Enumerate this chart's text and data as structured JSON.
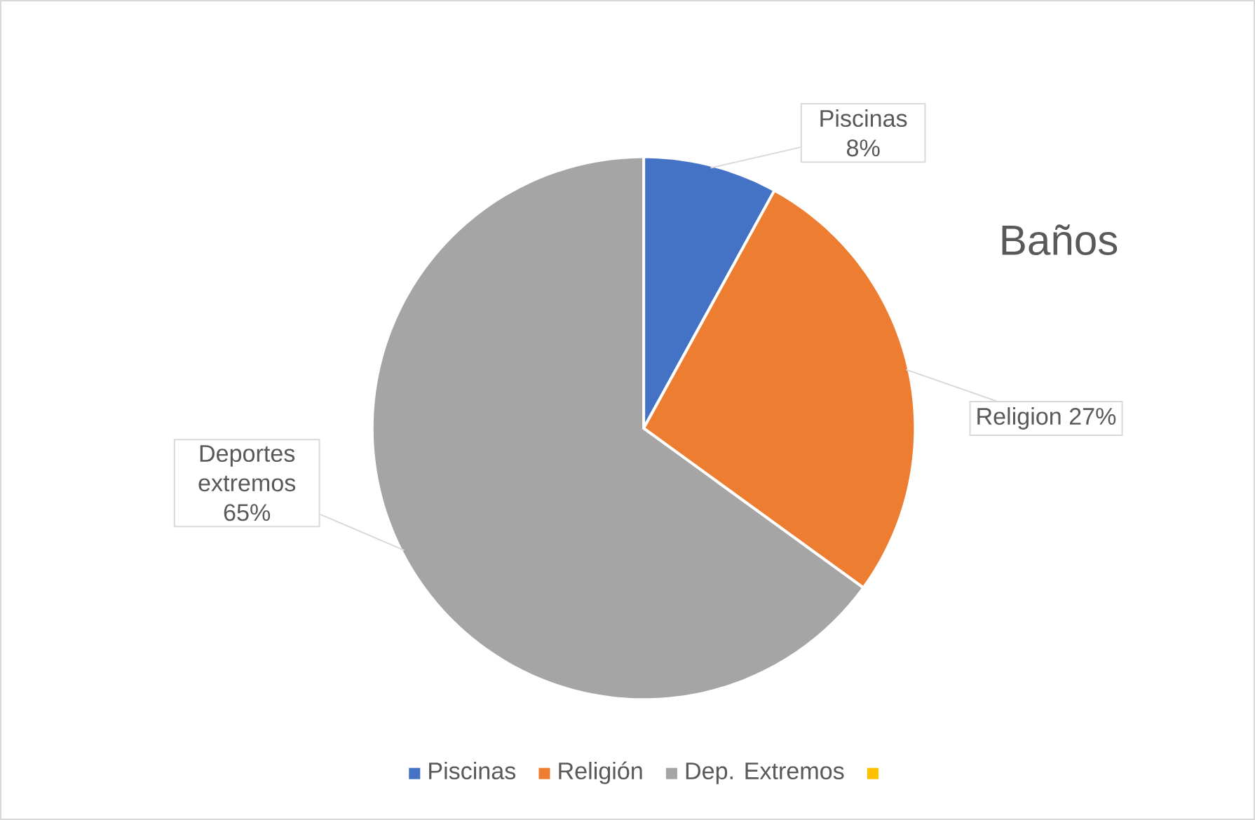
{
  "chart_data": {
    "type": "pie",
    "title": "Baños",
    "categories": [
      "Piscinas",
      "Religión",
      "Dep. Extremos",
      null
    ],
    "values": [
      8,
      27,
      65,
      0
    ],
    "colors": [
      "#4472c4",
      "#ed7d31",
      "#a5a5a5",
      "#ffc000"
    ],
    "value_labels": [
      "Piscinas 8%",
      "Religion 27%",
      "Deportes extremos 65%",
      null
    ],
    "legend": "bottom"
  }
}
